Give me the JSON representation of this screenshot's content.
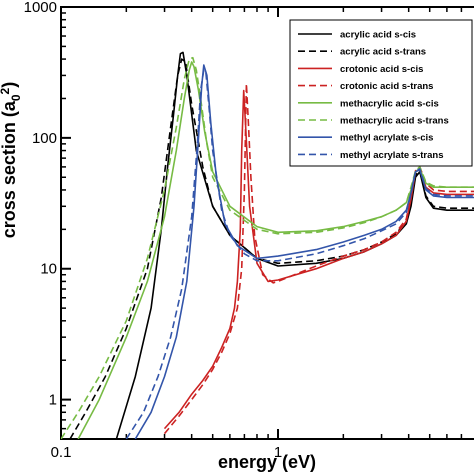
{
  "chart_data": {
    "type": "line",
    "xlabel": "energy (eV)",
    "ylabel": "cross section (a",
    "ylabel_sub": "0",
    "ylabel_sup": "2",
    "ylabel_close": ")",
    "x_scale": "log",
    "y_scale": "log",
    "xlim": [
      0.1,
      8
    ],
    "ylim": [
      0.5,
      1000
    ],
    "x_ticks": [
      {
        "value": 0.1,
        "label": "0.1"
      },
      {
        "value": 1,
        "label": "1"
      }
    ],
    "y_ticks": [
      {
        "value": 1,
        "label": "1"
      },
      {
        "value": 10,
        "label": "10"
      },
      {
        "value": 100,
        "label": "100"
      },
      {
        "value": 1000,
        "label": "1000"
      }
    ],
    "grid": false,
    "legend_position": "top-right",
    "series": [
      {
        "name": "acrylic acid s-cis",
        "color": "#000000",
        "dash": "solid",
        "x": [
          0.18,
          0.22,
          0.26,
          0.29,
          0.31,
          0.33,
          0.345,
          0.355,
          0.365,
          0.38,
          0.42,
          0.5,
          0.6,
          0.8,
          1.0,
          1.5,
          2.0,
          2.5,
          3.0,
          3.5,
          3.9,
          4.1,
          4.3,
          4.5,
          4.8,
          5.2,
          6,
          7,
          8
        ],
        "y": [
          0.5,
          1.5,
          5,
          20,
          60,
          150,
          300,
          440,
          450,
          300,
          80,
          30,
          18,
          12,
          10.5,
          11,
          12,
          13.5,
          15.5,
          18,
          22,
          30,
          50,
          55,
          35,
          29,
          28,
          28,
          28
        ]
      },
      {
        "name": "acrylic acid s-trans",
        "color": "#000000",
        "dash": "dashed",
        "x": [
          0.11,
          0.13,
          0.16,
          0.2,
          0.25,
          0.29,
          0.32,
          0.345,
          0.36,
          0.375,
          0.4,
          0.45,
          0.5,
          0.6,
          0.8,
          1.0,
          1.5,
          2,
          2.5,
          3,
          3.5,
          3.9,
          4.1,
          4.3,
          4.5,
          4.8,
          5.2,
          6,
          7,
          8
        ],
        "y": [
          0.5,
          0.8,
          1.5,
          3.5,
          10,
          35,
          120,
          300,
          400,
          380,
          180,
          60,
          30,
          18,
          12,
          11,
          11.5,
          12.5,
          14,
          16,
          18.5,
          23,
          32,
          52,
          56,
          36,
          30,
          29,
          29,
          29
        ]
      },
      {
        "name": "crotonic acid s-cis",
        "color": "#cc2222",
        "dash": "solid",
        "x": [
          0.3,
          0.35,
          0.4,
          0.45,
          0.5,
          0.55,
          0.6,
          0.63,
          0.65,
          0.67,
          0.68,
          0.695,
          0.71,
          0.74,
          0.8,
          0.9,
          1.0,
          1.5,
          2,
          2.5,
          3,
          3.5,
          3.9,
          4.1,
          4.3,
          4.5,
          4.8,
          5.2,
          6,
          7,
          8
        ],
        "y": [
          0.6,
          0.8,
          1.1,
          1.4,
          1.8,
          2.5,
          3.5,
          5,
          8,
          20,
          80,
          230,
          120,
          30,
          11,
          8,
          8.2,
          10,
          12,
          13.5,
          15.5,
          18,
          23,
          34,
          55,
          58,
          42,
          38,
          37,
          37,
          37
        ]
      },
      {
        "name": "crotonic acid s-trans",
        "color": "#cc2222",
        "dash": "dashed",
        "x": [
          0.3,
          0.35,
          0.4,
          0.45,
          0.5,
          0.55,
          0.6,
          0.65,
          0.68,
          0.7,
          0.715,
          0.73,
          0.75,
          0.78,
          0.85,
          0.95,
          1.0,
          1.5,
          2,
          2.5,
          3,
          3.5,
          3.9,
          4.1,
          4.3,
          4.5,
          4.8,
          5.2,
          6,
          7,
          8
        ],
        "y": [
          0.55,
          0.75,
          1,
          1.3,
          1.7,
          2.3,
          3.2,
          5,
          10,
          40,
          260,
          130,
          50,
          18,
          9,
          7.8,
          8,
          10.5,
          12.5,
          14,
          16,
          19,
          24,
          36,
          56,
          60,
          45,
          40,
          39,
          39,
          39
        ]
      },
      {
        "name": "methacrylic acid s-cis",
        "color": "#77bb44",
        "dash": "solid",
        "x": [
          0.12,
          0.15,
          0.2,
          0.25,
          0.3,
          0.34,
          0.37,
          0.39,
          0.4,
          0.41,
          0.43,
          0.46,
          0.5,
          0.6,
          0.8,
          1.0,
          1.5,
          2,
          2.5,
          3,
          3.5,
          3.9,
          4.1,
          4.3,
          4.5,
          4.8,
          5.2,
          6,
          7,
          8
        ],
        "y": [
          0.5,
          1,
          3,
          8,
          25,
          80,
          200,
          330,
          380,
          350,
          230,
          110,
          55,
          30,
          21,
          19,
          19.5,
          21,
          23,
          25,
          28,
          32,
          40,
          55,
          58,
          45,
          42,
          42,
          42,
          42
        ]
      },
      {
        "name": "methacrylic acid s-trans",
        "color": "#77bb44",
        "dash": "dashed",
        "x": [
          0.1,
          0.12,
          0.15,
          0.2,
          0.25,
          0.3,
          0.34,
          0.37,
          0.39,
          0.405,
          0.42,
          0.44,
          0.47,
          0.5,
          0.6,
          0.8,
          1.0,
          1.5,
          2,
          2.5,
          3,
          3.5,
          3.9,
          4.1,
          4.3,
          4.5,
          4.8,
          5.2,
          6,
          7,
          8
        ],
        "y": [
          0.5,
          0.8,
          1.5,
          4,
          12,
          40,
          120,
          280,
          400,
          410,
          330,
          200,
          90,
          50,
          28,
          20,
          18.5,
          19,
          20.5,
          22.5,
          25,
          28,
          32,
          42,
          56,
          60,
          46,
          43,
          42,
          42,
          42
        ]
      },
      {
        "name": "methyl acrylate s-cis",
        "color": "#3355aa",
        "dash": "solid",
        "x": [
          0.22,
          0.26,
          0.3,
          0.34,
          0.38,
          0.41,
          0.43,
          0.445,
          0.455,
          0.47,
          0.49,
          0.52,
          0.57,
          0.65,
          0.8,
          1.0,
          1.5,
          2,
          2.5,
          3,
          3.5,
          3.9,
          4.1,
          4.3,
          4.5,
          4.8,
          5.2,
          6,
          7,
          8
        ],
        "y": [
          0.5,
          0.8,
          1.5,
          3,
          8,
          30,
          100,
          250,
          360,
          300,
          130,
          50,
          22,
          15,
          12,
          12.5,
          14,
          16,
          18,
          20,
          23,
          28,
          38,
          55,
          57,
          40,
          36,
          35,
          35,
          35
        ]
      },
      {
        "name": "methyl acrylate s-trans",
        "color": "#3355aa",
        "dash": "dashed",
        "x": [
          0.2,
          0.24,
          0.28,
          0.32,
          0.36,
          0.4,
          0.425,
          0.44,
          0.455,
          0.465,
          0.48,
          0.5,
          0.55,
          0.6,
          0.7,
          0.8,
          1.0,
          1.5,
          2,
          2.5,
          3,
          3.5,
          3.9,
          4.1,
          4.3,
          4.5,
          4.8,
          5.2,
          6,
          7,
          8
        ],
        "y": [
          0.5,
          0.8,
          1.5,
          3,
          7,
          25,
          90,
          230,
          330,
          320,
          180,
          80,
          28,
          18,
          13,
          11.5,
          11.5,
          13,
          15,
          17,
          19.5,
          22,
          27,
          37,
          55,
          58,
          41,
          37,
          36,
          36,
          36
        ]
      }
    ]
  }
}
